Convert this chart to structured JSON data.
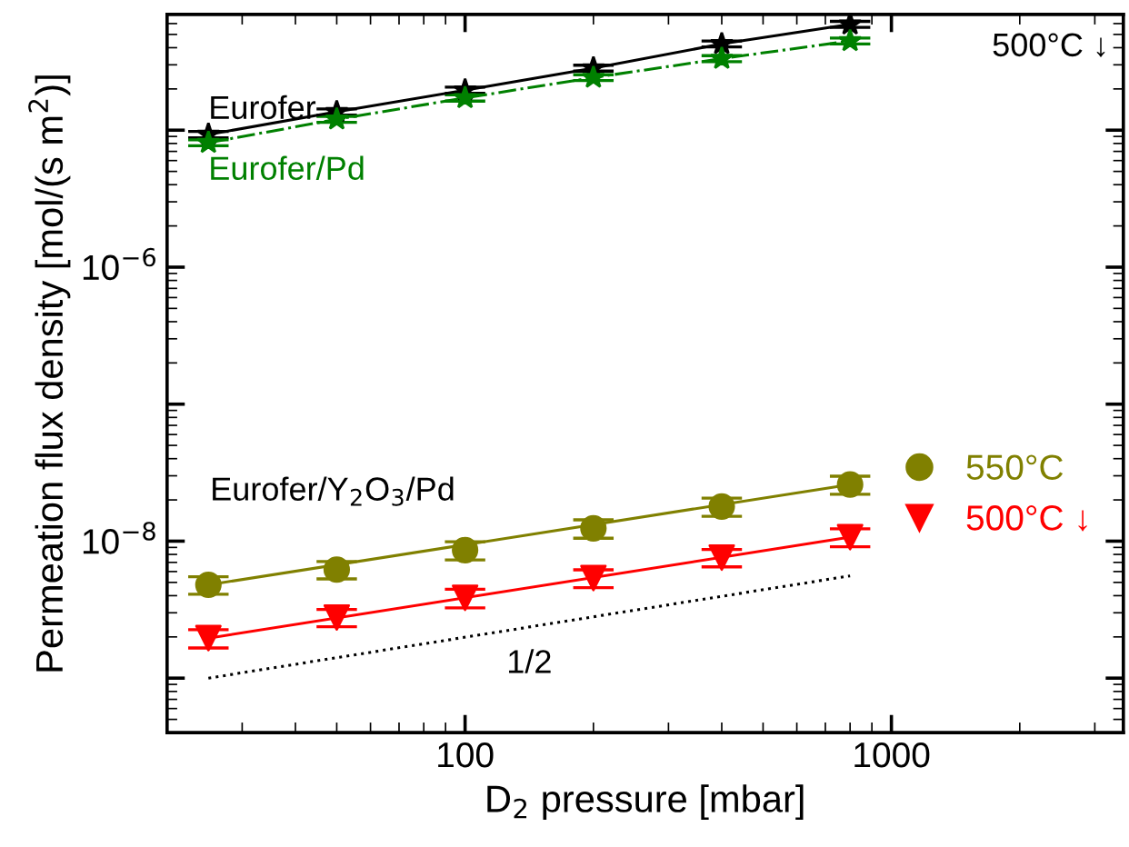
{
  "chart_data": {
    "type": "scatter",
    "xlabel": "D$_{2}$ pressure [mbar]",
    "ylabel": "Permeation flux density [mol/(s m$^{2}$)]",
    "log": "xy",
    "xlim": [
      20,
      3500
    ],
    "ylim": [
      4e-10,
      7e-05
    ],
    "xticks": [
      100,
      1000
    ],
    "yticks": [
      {
        "value": 1e-09,
        "label": null
      },
      {
        "value": 1e-08,
        "label": "10$^{−8}$"
      },
      {
        "value": 1e-07,
        "label": null
      },
      {
        "value": 1e-06,
        "label": "10$^{−6}$"
      },
      {
        "value": 1e-05,
        "label": null
      }
    ],
    "grid": false,
    "legend": "right",
    "series": [
      {
        "type": "line",
        "name": "Eurofer",
        "color": "#000000",
        "marker": "star",
        "line_style": "solid",
        "x": [
          25,
          50,
          100,
          200,
          400,
          800
        ],
        "values": [
          9.3e-06,
          1.36e-05,
          1.96e-05,
          2.84e-05,
          4.26e-05,
          5.93e-05
        ],
        "errors": [
          5e-07,
          7e-07,
          1e-06,
          1.4e-06,
          2.1e-06,
          3e-06
        ]
      },
      {
        "type": "line",
        "name": "Eurofer/Pd",
        "color": "#008000",
        "marker": "star",
        "line_style": "dashdot",
        "x": [
          25,
          50,
          100,
          200,
          400,
          800
        ],
        "values": [
          8.1e-06,
          1.2e-05,
          1.72e-05,
          2.42e-05,
          3.33e-05,
          4.48e-05
        ],
        "errors": [
          4e-07,
          6e-07,
          9e-07,
          1.2e-06,
          1.7e-06,
          2.2e-06
        ]
      },
      {
        "name": "550°C",
        "color": "#808000",
        "marker": "circle",
        "x": [
          25,
          50,
          100,
          200,
          400,
          800
        ],
        "values": [
          4.8e-09,
          6.2e-09,
          8.6e-09,
          1.24e-08,
          1.79e-08,
          2.59e-08
        ],
        "errors": [
          7e-10,
          9e-10,
          1.3e-09,
          1.9e-09,
          2.7e-09,
          3.9e-09
        ]
      },
      {
        "name": "500°C ↓",
        "color": "#ff0000",
        "marker": "triangle",
        "x": [
          25,
          50,
          100,
          200,
          400,
          800
        ],
        "values": [
          1.96e-09,
          2.77e-09,
          3.86e-09,
          5.38e-09,
          7.59e-09,
          1.07e-08
        ],
        "errors": [
          3e-10,
          4e-10,
          6e-10,
          8e-10,
          1.1e-09,
          1.6e-09
        ]
      },
      {
        "type": "line",
        "color": "#808000",
        "marker": "none",
        "line_style": "solid",
        "x": [
          25,
          800
        ],
        "values": [
          4.8e-09,
          2.59e-08
        ]
      },
      {
        "type": "line",
        "color": "#ff0000",
        "marker": "none",
        "line_style": "solid",
        "x": [
          25,
          800
        ],
        "values": [
          1.96e-09,
          1.07e-08
        ]
      },
      {
        "type": "line",
        "color": "#000000",
        "marker": "none",
        "line_style": "dotted",
        "x": [
          25,
          800
        ],
        "values": [
          1e-09,
          5.58e-09
        ]
      }
    ],
    "annotations": [
      "500°C ↓",
      "Eurofer/Y$_{2}$O$_{3}$/Pd",
      "1/2"
    ]
  }
}
